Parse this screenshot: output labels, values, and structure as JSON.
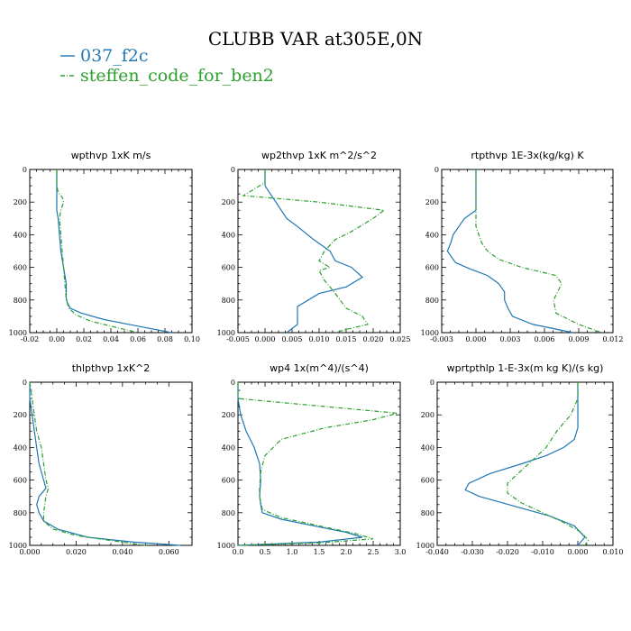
{
  "title": "CLUBB VAR at305E,0N",
  "legend": [
    {
      "label": "037_f2c",
      "color": "#1f77b4",
      "dash": "solid"
    },
    {
      "label": "steffen_code_for_ben2",
      "color": "#2ca02c",
      "dash": "dashdot"
    }
  ],
  "chart_data": [
    {
      "type": "line",
      "title": "wpthvp   1xK m/s",
      "xlim": [
        -0.02,
        0.1
      ],
      "ylim": [
        1000,
        0
      ],
      "xticks": [
        -0.02,
        0.0,
        0.02,
        0.04,
        0.06,
        0.08,
        0.1
      ],
      "xtick_labels": [
        "-0.02",
        "0.00",
        "0.02",
        "0.04",
        "0.06",
        "0.08",
        "0.10"
      ],
      "yticks": [
        0,
        200,
        400,
        600,
        800,
        1000
      ],
      "series": [
        {
          "name": "037_f2c",
          "x": [
            0.0,
            0.0,
            0.0,
            0.0,
            0.001,
            0.002,
            0.003,
            0.004,
            0.005,
            0.006,
            0.007,
            0.007,
            0.007,
            0.008,
            0.01,
            0.018,
            0.035,
            0.06,
            0.085
          ],
          "y": [
            0,
            100,
            200,
            250,
            300,
            400,
            500,
            550,
            600,
            650,
            700,
            750,
            790,
            820,
            850,
            880,
            920,
            960,
            1000
          ]
        },
        {
          "name": "steffen_code_for_ben2",
          "x": [
            0.0,
            0.0,
            0.001,
            0.004,
            0.005,
            0.003,
            0.002,
            0.003,
            0.004,
            0.005,
            0.006,
            0.007,
            0.009,
            0.014,
            0.025,
            0.045,
            0.06
          ],
          "y": [
            0,
            100,
            140,
            170,
            200,
            250,
            300,
            400,
            500,
            600,
            700,
            800,
            850,
            890,
            930,
            970,
            1000
          ]
        }
      ]
    },
    {
      "type": "line",
      "title": "wp2thvp   1xK m^2/s^2",
      "xlim": [
        -0.005,
        0.025
      ],
      "ylim": [
        1000,
        0
      ],
      "xticks": [
        -0.005,
        0.0,
        0.005,
        0.01,
        0.015,
        0.02,
        0.025
      ],
      "xtick_labels": [
        "-0.005",
        "0.000",
        "0.005",
        "0.010",
        "0.015",
        "0.020",
        "0.025"
      ],
      "yticks": [
        0,
        200,
        400,
        600,
        800,
        1000
      ],
      "series": [
        {
          "name": "037_f2c",
          "x": [
            0.0,
            0.0,
            0.001,
            0.002,
            0.003,
            0.004,
            0.006,
            0.009,
            0.012,
            0.013,
            0.016,
            0.018,
            0.015,
            0.01,
            0.008,
            0.006,
            0.006,
            0.006,
            0.004
          ],
          "y": [
            0,
            100,
            150,
            200,
            250,
            300,
            350,
            430,
            500,
            560,
            600,
            660,
            720,
            760,
            800,
            840,
            900,
            950,
            1000
          ]
        },
        {
          "name": "steffen_code_for_ben2",
          "x": [
            0.0,
            0.0,
            -0.002,
            -0.004,
            0.01,
            0.022,
            0.02,
            0.016,
            0.013,
            0.011,
            0.01,
            0.012,
            0.01,
            0.011,
            0.013,
            0.015,
            0.018,
            0.019,
            0.015,
            0.013
          ],
          "y": [
            0,
            80,
            120,
            160,
            200,
            250,
            300,
            380,
            430,
            500,
            560,
            600,
            620,
            680,
            760,
            850,
            900,
            950,
            980,
            1000
          ]
        }
      ]
    },
    {
      "type": "line",
      "title": "rtpthvp   1E-3x(kg/kg) K",
      "xlim": [
        -0.003,
        0.012
      ],
      "ylim": [
        1000,
        0
      ],
      "xticks": [
        -0.003,
        0.0,
        0.003,
        0.006,
        0.009,
        0.012
      ],
      "xtick_labels": [
        "-0.003",
        "0.000",
        "0.003",
        "0.006",
        "0.009",
        "0.012"
      ],
      "yticks": [
        0,
        200,
        400,
        600,
        800,
        1000
      ],
      "series": [
        {
          "name": "037_f2c",
          "x": [
            0.0,
            0.0,
            0.0,
            -0.001,
            -0.0015,
            -0.002,
            -0.0022,
            -0.0025,
            -0.0018,
            -0.0005,
            0.001,
            0.002,
            0.0025,
            0.0025,
            0.0028,
            0.0032,
            0.005,
            0.0085
          ],
          "y": [
            0,
            150,
            250,
            300,
            350,
            400,
            450,
            500,
            570,
            610,
            650,
            700,
            750,
            800,
            850,
            900,
            950,
            1000
          ]
        },
        {
          "name": "steffen_code_for_ben2",
          "x": [
            0.0,
            0.0,
            0.0,
            0.0,
            0.0005,
            0.001,
            0.002,
            0.004,
            0.007,
            0.0075,
            0.0068,
            0.007,
            0.009,
            0.011
          ],
          "y": [
            0,
            150,
            250,
            350,
            450,
            500,
            550,
            600,
            650,
            700,
            800,
            880,
            950,
            1000
          ]
        }
      ]
    },
    {
      "type": "line",
      "title": "thlpthvp   1xK^2",
      "xlim": [
        0.0,
        0.07
      ],
      "ylim": [
        1000,
        0
      ],
      "xticks": [
        0.0,
        0.02,
        0.04,
        0.06
      ],
      "xtick_labels": [
        "0.000",
        "0.020",
        "0.040",
        "0.060"
      ],
      "yticks": [
        0,
        200,
        400,
        600,
        800,
        1000
      ],
      "series": [
        {
          "name": "037_f2c",
          "x": [
            0.0,
            0.0,
            0.001,
            0.002,
            0.003,
            0.004,
            0.005,
            0.006,
            0.007,
            0.004,
            0.003,
            0.004,
            0.006,
            0.012,
            0.025,
            0.045,
            0.065
          ],
          "y": [
            0,
            100,
            200,
            300,
            400,
            500,
            550,
            600,
            650,
            700,
            750,
            800,
            850,
            900,
            950,
            980,
            1000
          ]
        },
        {
          "name": "steffen_code_for_ben2",
          "x": [
            0.0,
            0.001,
            0.002,
            0.003,
            0.005,
            0.006,
            0.007,
            0.008,
            0.007,
            0.006,
            0.006,
            0.01,
            0.02,
            0.035,
            0.05
          ],
          "y": [
            0,
            100,
            200,
            300,
            400,
            500,
            600,
            650,
            700,
            800,
            850,
            900,
            940,
            970,
            1000
          ]
        }
      ]
    },
    {
      "type": "line",
      "title": "wp4   1x(m^4)/(s^4)",
      "xlim": [
        0.0,
        3.0
      ],
      "ylim": [
        1000,
        0
      ],
      "xticks": [
        0.0,
        0.5,
        1.0,
        1.5,
        2.0,
        2.5,
        3.0
      ],
      "xtick_labels": [
        "0.0",
        "0.5",
        "1.0",
        "1.5",
        "2.0",
        "2.5",
        "3.0"
      ],
      "yticks": [
        0,
        200,
        400,
        600,
        800,
        1000
      ],
      "series": [
        {
          "name": "037_f2c",
          "x": [
            0.0,
            0.0,
            0.05,
            0.15,
            0.3,
            0.4,
            0.42,
            0.4,
            0.42,
            0.45,
            0.8,
            1.4,
            2.0,
            2.3,
            1.5,
            0.0
          ],
          "y": [
            0,
            100,
            200,
            300,
            400,
            500,
            600,
            700,
            750,
            800,
            840,
            880,
            920,
            950,
            980,
            1000
          ]
        },
        {
          "name": "steffen_code_for_ben2",
          "x": [
            0.0,
            0.0,
            2.95,
            2.5,
            1.6,
            0.8,
            0.5,
            0.42,
            0.4,
            0.4,
            0.45,
            0.8,
            1.5,
            2.2,
            2.5,
            1.5,
            0.0
          ],
          "y": [
            0,
            100,
            190,
            230,
            280,
            350,
            450,
            550,
            650,
            700,
            780,
            830,
            880,
            930,
            960,
            985,
            1000
          ]
        }
      ]
    },
    {
      "type": "line",
      "title": "wprtpthlp   1-E-3x(m kg K)/(s kg)",
      "xlim": [
        -0.04,
        0.01
      ],
      "ylim": [
        1000,
        0
      ],
      "xticks": [
        -0.04,
        -0.03,
        -0.02,
        -0.01,
        0.0,
        0.01
      ],
      "xtick_labels": [
        "-0.040",
        "-0.030",
        "-0.020",
        "-0.010",
        "0.000",
        "0.010"
      ],
      "yticks": [
        0,
        200,
        400,
        600,
        800,
        1000
      ],
      "series": [
        {
          "name": "037_f2c",
          "x": [
            0.0,
            0.0,
            0.0,
            -0.001,
            -0.004,
            -0.009,
            -0.016,
            -0.025,
            -0.031,
            -0.032,
            -0.028,
            -0.018,
            -0.008,
            -0.001,
            0.002,
            0.0
          ],
          "y": [
            0,
            100,
            280,
            350,
            400,
            450,
            500,
            560,
            620,
            660,
            700,
            760,
            820,
            880,
            950,
            1000
          ]
        },
        {
          "name": "steffen_code_for_ben2",
          "x": [
            0.0,
            0.0,
            -0.002,
            -0.004,
            -0.006,
            -0.009,
            -0.013,
            -0.017,
            -0.02,
            -0.02,
            -0.016,
            -0.01,
            -0.004,
            0.001,
            0.003,
            0.002
          ],
          "y": [
            0,
            100,
            200,
            250,
            300,
            400,
            480,
            560,
            620,
            680,
            740,
            800,
            860,
            920,
            970,
            1000
          ]
        }
      ]
    }
  ]
}
